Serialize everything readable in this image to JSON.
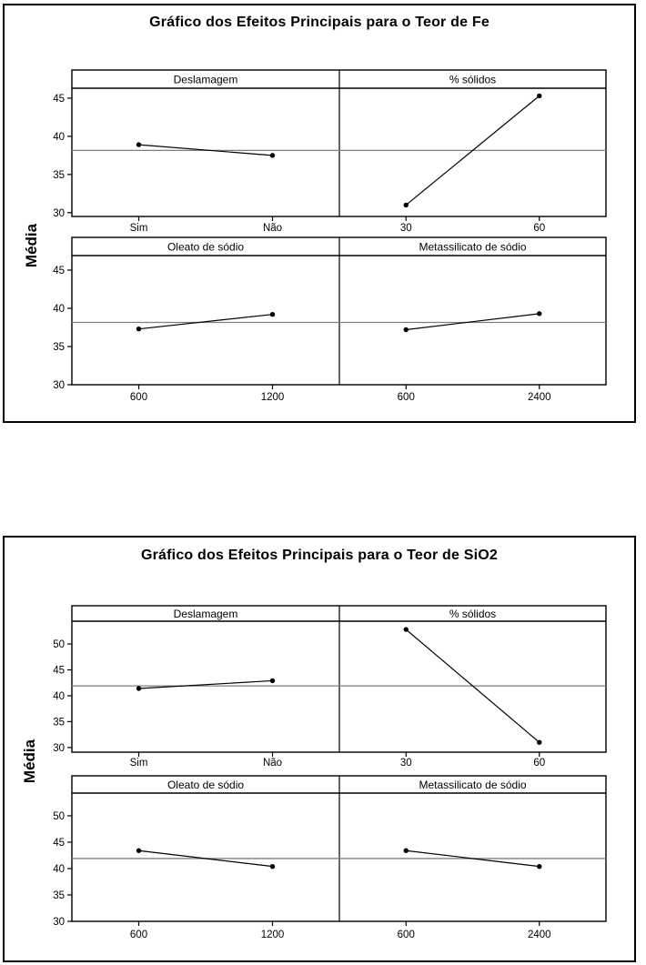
{
  "page": {
    "background": "#ffffff"
  },
  "colors": {
    "text": "#000000",
    "border": "#000000",
    "effect_line": "#000000",
    "marker": "#000000",
    "reference_line": "#7f7f7f"
  },
  "chart_data": [
    {
      "type": "line",
      "chart_kind": "main-effects-plot",
      "title": "Gráfico dos Efeitos Principais para o Teor de Fe",
      "ylabel": "Média",
      "grand_mean": 38.15,
      "yticks": [
        30,
        35,
        40,
        45
      ],
      "marker": "filled-circle",
      "rows": [
        {
          "ylim": [
            29.5,
            46.3
          ],
          "panels": [
            {
              "factor": "Deslamagem",
              "levels": [
                "Sim",
                "Não"
              ],
              "means": [
                38.9,
                37.5
              ]
            },
            {
              "factor": "% sólidos",
              "levels": [
                "30",
                "60"
              ],
              "means": [
                31.0,
                45.3
              ]
            }
          ]
        },
        {
          "ylim": [
            30.0,
            46.9
          ],
          "panels": [
            {
              "factor": "Oleato de sódio",
              "levels": [
                "600",
                "1200"
              ],
              "means": [
                37.3,
                39.2
              ]
            },
            {
              "factor": "Metassilicato de sódio",
              "levels": [
                "600",
                "2400"
              ],
              "means": [
                37.2,
                39.3
              ]
            }
          ]
        }
      ]
    },
    {
      "type": "line",
      "chart_kind": "main-effects-plot",
      "title": "Gráfico dos Efeitos Principais para o Teor de SiO2",
      "ylabel": "Média",
      "grand_mean": 41.9,
      "yticks": [
        30,
        35,
        40,
        45,
        50
      ],
      "marker": "filled-circle",
      "rows": [
        {
          "ylim": [
            29.1,
            54.4
          ],
          "panels": [
            {
              "factor": "Deslamagem",
              "levels": [
                "Sim",
                "Não"
              ],
              "means": [
                41.4,
                42.9
              ]
            },
            {
              "factor": "% sólidos",
              "levels": [
                "30",
                "60"
              ],
              "means": [
                52.8,
                31.0
              ]
            }
          ]
        },
        {
          "ylim": [
            30.0,
            54.3
          ],
          "panels": [
            {
              "factor": "Oleato de sódio",
              "levels": [
                "600",
                "1200"
              ],
              "means": [
                43.4,
                40.4
              ]
            },
            {
              "factor": "Metassilicato de sódio",
              "levels": [
                "600",
                "2400"
              ],
              "means": [
                43.4,
                40.4
              ]
            }
          ]
        }
      ]
    }
  ]
}
